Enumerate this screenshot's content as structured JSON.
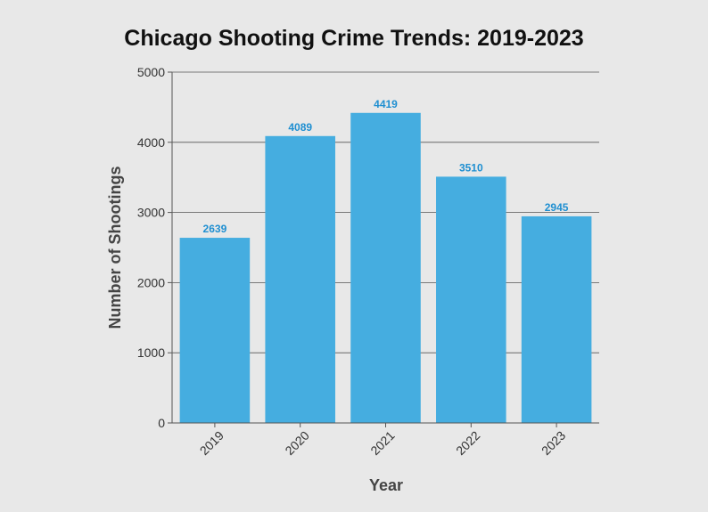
{
  "chart_data": {
    "type": "bar",
    "title": "Chicago Shooting Crime Trends: 2019-2023",
    "xlabel": "Year",
    "ylabel": "Number of Shootings",
    "categories": [
      "2019",
      "2020",
      "2021",
      "2022",
      "2023"
    ],
    "values": [
      2639,
      4089,
      4419,
      3510,
      2945
    ],
    "ylim": [
      0,
      5000
    ],
    "yticks": [
      "0",
      "1000",
      "2000",
      "3000",
      "4000",
      "5000"
    ],
    "grid": true,
    "legend": "none",
    "bar_color": "#45ade0",
    "label_color": "#1f8fd1"
  }
}
